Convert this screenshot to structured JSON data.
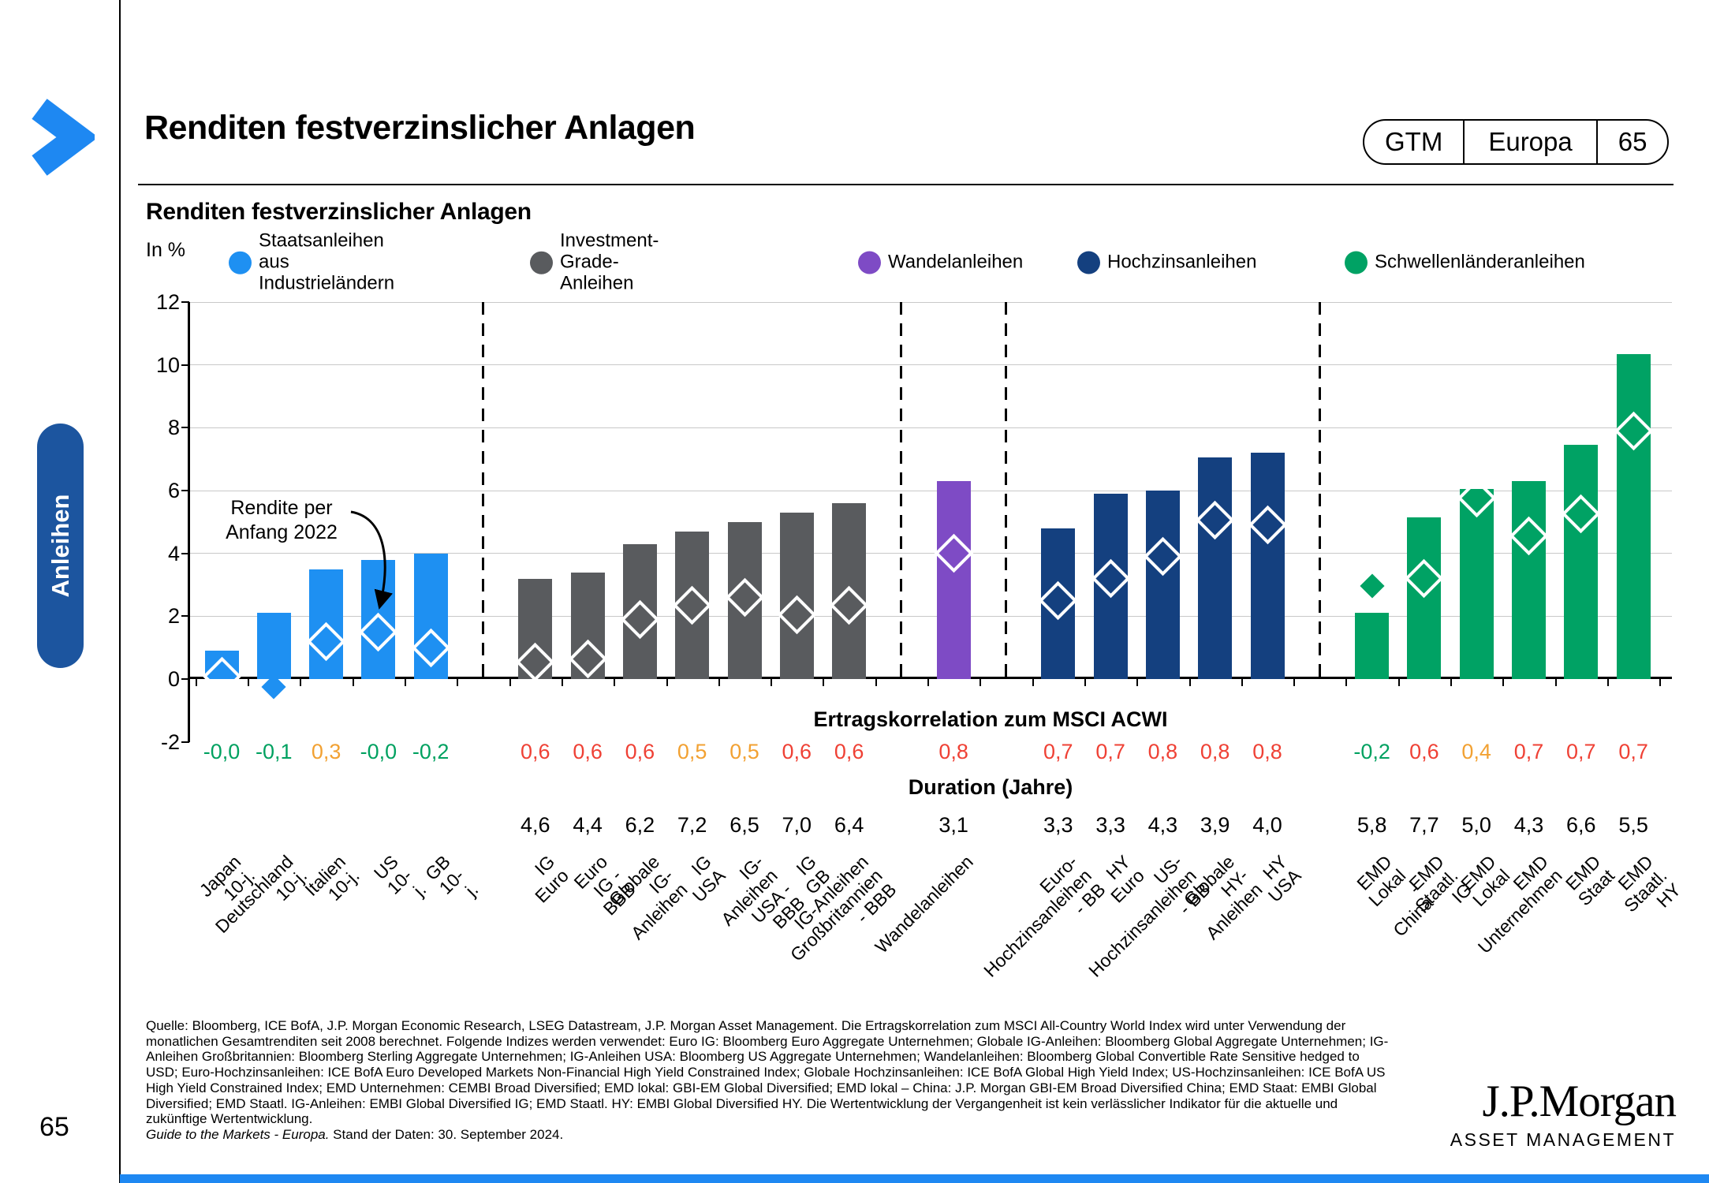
{
  "page": {
    "title": "Renditen festverzinslicher Anlagen",
    "page_number": "65",
    "sidebar_tab": "Anleihen",
    "badge": {
      "gtm": "GTM",
      "region": "Europa",
      "number": "65"
    },
    "logo": {
      "line1": "J.P.Morgan",
      "line2": "ASSET MANAGEMENT"
    }
  },
  "chart_header": {
    "title": "Renditen festverzinslicher Anlagen"
  },
  "legend_labels": [
    "Staatsanleihen aus\nIndustrieländern",
    "Investment-Grade-Anleihen",
    "Wandelanleihen",
    "Hochzinsanleihen",
    "Schwellenländeranleihen"
  ],
  "chart_data": {
    "type": "bar",
    "ylabel": "In %",
    "ylim": [
      -2,
      12
    ],
    "yticks": [
      12,
      10,
      8,
      6,
      4,
      2,
      0,
      -2
    ],
    "grid": "horizontal",
    "marker_note": "Rendite per\nAnfang 2022",
    "row_headers": {
      "correlation": "Ertragskorrelation zum MSCI ACWI",
      "duration": "Duration (Jahre)"
    },
    "corr_palette": {
      "green": "#00a160",
      "orange": "#f2a132",
      "red": "#ef4135"
    },
    "groups": [
      {
        "name": "Staatsanleihen aus Industrieländern",
        "color": "#1e90f2",
        "bars": [
          {
            "label": "Japan 10-j.",
            "yield": 0.9,
            "yield_2022": 0.1,
            "correlation": "-0,0",
            "corr_color": "green",
            "duration": ""
          },
          {
            "label": "Deutschland 10-j.",
            "yield": 2.1,
            "yield_2022": -0.25,
            "correlation": "-0,1",
            "corr_color": "green",
            "duration": ""
          },
          {
            "label": "Italien 10-j.",
            "yield": 3.5,
            "yield_2022": 1.2,
            "correlation": "0,3",
            "corr_color": "orange",
            "duration": ""
          },
          {
            "label": "US 10-j.",
            "yield": 3.8,
            "yield_2022": 1.5,
            "correlation": "-0,0",
            "corr_color": "green",
            "duration": ""
          },
          {
            "label": "GB 10-j.",
            "yield": 4.0,
            "yield_2022": 1.0,
            "correlation": "-0,2",
            "corr_color": "green",
            "duration": ""
          }
        ]
      },
      {
        "name": "Investment-Grade-Anleihen",
        "color": "#595b5e",
        "bars": [
          {
            "label": "IG Euro",
            "yield": 3.2,
            "yield_2022": 0.55,
            "correlation": "0,6",
            "corr_color": "red",
            "duration": "4,6"
          },
          {
            "label": "Euro IG - BBB",
            "yield": 3.4,
            "yield_2022": 0.65,
            "correlation": "0,6",
            "corr_color": "red",
            "duration": "4,4"
          },
          {
            "label": "Globale IG-Anleihen",
            "yield": 4.3,
            "yield_2022": 1.9,
            "correlation": "0,6",
            "corr_color": "red",
            "duration": "6,2"
          },
          {
            "label": "IG USA",
            "yield": 4.7,
            "yield_2022": 2.35,
            "correlation": "0,5",
            "corr_color": "orange",
            "duration": "7,2"
          },
          {
            "label": "IG-Anleihen\nUSA - BBB",
            "yield": 5.0,
            "yield_2022": 2.6,
            "correlation": "0,5",
            "corr_color": "orange",
            "duration": "6,5"
          },
          {
            "label": "IG GB",
            "yield": 5.3,
            "yield_2022": 2.05,
            "correlation": "0,6",
            "corr_color": "red",
            "duration": "7,0"
          },
          {
            "label": "IG-Anleihen\nGroßbritannien - BBB",
            "yield": 5.6,
            "yield_2022": 2.35,
            "correlation": "0,6",
            "corr_color": "red",
            "duration": "6,4"
          }
        ]
      },
      {
        "name": "Wandelanleihen",
        "color": "#7e4bc5",
        "bars": [
          {
            "label": "Wandelanleihen",
            "yield": 6.3,
            "yield_2022": 4.0,
            "correlation": "0,8",
            "corr_color": "red",
            "duration": "3,1"
          }
        ]
      },
      {
        "name": "Hochzinsanleihen",
        "color": "#14407f",
        "bars": [
          {
            "label": "Euro-\nHochzinsanleihen - BB",
            "yield": 4.8,
            "yield_2022": 2.5,
            "correlation": "0,7",
            "corr_color": "red",
            "duration": "3,3"
          },
          {
            "label": "HY Euro",
            "yield": 5.9,
            "yield_2022": 3.2,
            "correlation": "0,7",
            "corr_color": "red",
            "duration": "3,3"
          },
          {
            "label": "US-Hochzinsanleihen\n- BB",
            "yield": 6.0,
            "yield_2022": 3.9,
            "correlation": "0,8",
            "corr_color": "red",
            "duration": "4,3"
          },
          {
            "label": "Globale HY-\nAnleihen",
            "yield": 7.05,
            "yield_2022": 5.05,
            "correlation": "0,8",
            "corr_color": "red",
            "duration": "3,9"
          },
          {
            "label": "HY USA",
            "yield": 7.2,
            "yield_2022": 4.9,
            "correlation": "0,8",
            "corr_color": "red",
            "duration": "4,0"
          }
        ]
      },
      {
        "name": "Schwellenländeranleihen",
        "color": "#00a264",
        "bars": [
          {
            "label": "EMD Lokal - China",
            "yield": 2.1,
            "yield_2022": 2.95,
            "correlation": "-0,2",
            "corr_color": "green",
            "duration": "5,8"
          },
          {
            "label": "EMD Staatl. IG",
            "yield": 5.15,
            "yield_2022": 3.2,
            "correlation": "0,6",
            "corr_color": "red",
            "duration": "7,7"
          },
          {
            "label": "EMD Lokal",
            "yield": 6.05,
            "yield_2022": 5.75,
            "correlation": "0,4",
            "corr_color": "orange",
            "duration": "5,0"
          },
          {
            "label": "EMD Unternehmen",
            "yield": 6.3,
            "yield_2022": 4.55,
            "correlation": "0,7",
            "corr_color": "red",
            "duration": "4,3"
          },
          {
            "label": "EMD Staat",
            "yield": 7.45,
            "yield_2022": 5.25,
            "correlation": "0,7",
            "corr_color": "red",
            "duration": "6,6"
          },
          {
            "label": "EMD Staatl. HY",
            "yield": 10.35,
            "yield_2022": 7.9,
            "correlation": "0,7",
            "corr_color": "red",
            "duration": "5,5"
          }
        ]
      }
    ]
  },
  "footer": {
    "source_text": "Quelle: Bloomberg, ICE BofA, J.P. Morgan Economic Research, LSEG Datastream, J.P. Morgan Asset Management. Die Ertragskorrelation zum MSCI All-Country World Index wird unter Verwendung der monatlichen Gesamtrenditen seit 2008 berechnet. Folgende Indizes werden verwendet: Euro IG: Bloomberg Euro Aggregate Unternehmen; Globale IG-Anleihen: Bloomberg Global Aggregate Unternehmen; IG-Anleihen Großbritannien: Bloomberg Sterling Aggregate Unternehmen; IG-Anleihen USA: Bloomberg US Aggregate Unternehmen; Wandelanleihen: Bloomberg Global Convertible Rate Sensitive hedged to USD; Euro-Hochzinsanleihen: ICE BofA Euro Developed Markets Non-Financial High Yield Constrained Index; Globale Hochzinsanleihen: ICE BofA Global High Yield Index; US-Hochzinsanleihen: ICE BofA US High Yield Constrained Index; EMD Unternehmen: CEMBI Broad Diversified; EMD lokal: GBI-EM Global Diversified; EMD lokal – China: J.P. Morgan GBI-EM Broad Diversified China; EMD Staat: EMBI Global Diversified; EMD Staatl. IG-Anleihen: EMBI Global Diversified IG; EMD Staatl. HY: EMBI Global Diversified HY. Die Wertentwicklung der Vergangenheit ist kein verlässlicher Indikator für die aktuelle und zukünftige Wertentwicklung.",
    "guide_italic": "Guide to the Markets - Europa.",
    "guide_rest": " Stand der Daten: 30. September 2024."
  }
}
